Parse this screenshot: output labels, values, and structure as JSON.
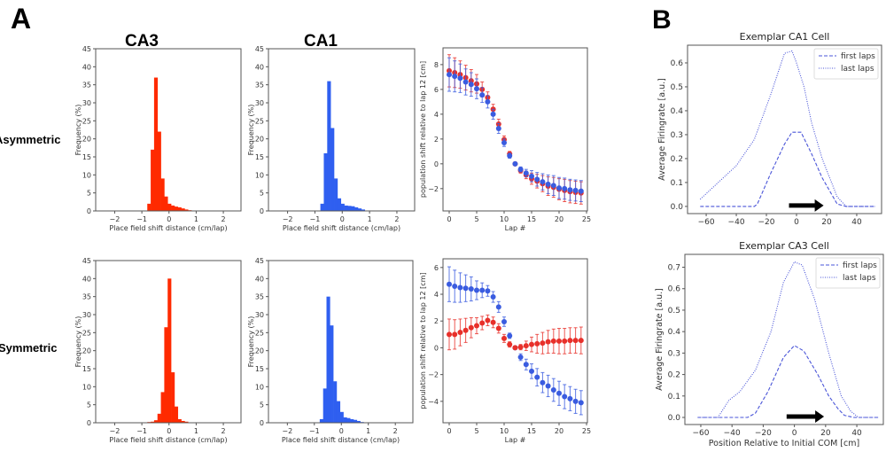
{
  "figure": {
    "panel_labels": {
      "a": "A",
      "b": "B"
    },
    "column_titles": {
      "ca3": "CA3",
      "ca1": "CA1"
    },
    "row_labels": {
      "asymmetric": "Asymmetric",
      "symmetric": "Symmetric"
    }
  },
  "colors": {
    "red_hist": "#ff2a00",
    "blue_hist": "#2f5ff0",
    "red_point": "#e8302a",
    "blue_point": "#3a5ce0",
    "line_blue": "#4a55d8",
    "axis": "#555555"
  },
  "chart_data": [
    {
      "id": "hist-ca3-asym",
      "type": "bar",
      "xlabel": "Place field shift distance (cm/lap)",
      "ylabel": "Frequency (%)",
      "xlim": [
        -2.7,
        2.65
      ],
      "ylim": [
        0,
        45
      ],
      "xticks": [
        -2,
        -1,
        0,
        1,
        2
      ],
      "xtick_labels": [
        "−2",
        "−1",
        "0",
        "1",
        "2"
      ],
      "yticks": [
        0,
        5,
        10,
        15,
        20,
        25,
        30,
        35,
        40,
        45
      ],
      "ytick_labels": [
        "0",
        "5",
        "10",
        "15",
        "20",
        "25",
        "30",
        "35",
        "40",
        "45"
      ],
      "color": "#ff2a00",
      "bin_start": -0.8,
      "bin_width": 0.125,
      "values": [
        2,
        17,
        37,
        22,
        9,
        4,
        2,
        1.5,
        1.2,
        1.0,
        0.7,
        0.4,
        0.2,
        0.1
      ]
    },
    {
      "id": "hist-ca1-asym",
      "type": "bar",
      "xlabel": "Place field shift distance (cm/lap)",
      "ylabel": "Frequency (%)",
      "xlim": [
        -2.7,
        2.65
      ],
      "ylim": [
        0,
        45
      ],
      "xticks": [
        -2,
        -1,
        0,
        1,
        2
      ],
      "xtick_labels": [
        "−2",
        "−1",
        "0",
        "1",
        "2"
      ],
      "yticks": [
        0,
        5,
        10,
        15,
        20,
        25,
        30,
        35,
        40,
        45
      ],
      "ytick_labels": [
        "0",
        "5",
        "10",
        "15",
        "20",
        "25",
        "30",
        "35",
        "40",
        "45"
      ],
      "color": "#2f5ff0",
      "bin_start": -0.8,
      "bin_width": 0.125,
      "values": [
        2,
        16,
        36,
        23,
        9,
        3.5,
        2,
        1.5,
        1.4,
        1.3,
        1.0,
        0.7,
        0.4,
        0.1
      ]
    },
    {
      "id": "shift-asym",
      "type": "scatter",
      "xlabel": "Lap #",
      "ylabel": "population shift relative to lap 12 [cm]",
      "xlim": [
        -1.13,
        25.16
      ],
      "ylim": [
        -3.8,
        9.35
      ],
      "xticks": [
        0,
        5,
        10,
        15,
        20,
        25
      ],
      "xtick_labels": [
        "0",
        "5",
        "10",
        "15",
        "20",
        "25"
      ],
      "yticks": [
        -2,
        0,
        2,
        4,
        6,
        8
      ],
      "ytick_labels": [
        "−2",
        "0",
        "2",
        "4",
        "6",
        "8"
      ],
      "x": [
        0,
        1,
        2,
        3,
        4,
        5,
        6,
        7,
        8,
        9,
        10,
        11,
        12,
        13,
        14,
        15,
        16,
        17,
        18,
        19,
        20,
        21,
        22,
        23,
        24
      ],
      "series": [
        {
          "color": "#e8302a",
          "y": [
            7.5,
            7.35,
            7.2,
            6.95,
            6.7,
            6.45,
            6.0,
            5.35,
            4.4,
            3.2,
            1.95,
            0.8,
            0,
            -0.55,
            -0.9,
            -1.2,
            -1.4,
            -1.6,
            -1.8,
            -1.9,
            -2.05,
            -2.15,
            -2.25,
            -2.3,
            -2.35
          ],
          "err": [
            1.3,
            1.2,
            1.1,
            1.0,
            0.9,
            0.75,
            0.6,
            0.45,
            0.4,
            0.4,
            0.3,
            0.2,
            0,
            0.2,
            0.3,
            0.45,
            0.55,
            0.65,
            0.75,
            0.8,
            0.85,
            0.9,
            0.9,
            0.9,
            0.9
          ]
        },
        {
          "color": "#3a5ce0",
          "y": [
            7.2,
            7.05,
            6.9,
            6.6,
            6.4,
            6.05,
            5.55,
            5.0,
            4.0,
            2.85,
            1.7,
            0.65,
            0,
            -0.45,
            -0.75,
            -1.0,
            -1.25,
            -1.45,
            -1.65,
            -1.75,
            -1.95,
            -2.0,
            -2.1,
            -2.15,
            -2.2
          ],
          "err": [
            1.35,
            1.25,
            1.15,
            1.05,
            0.95,
            0.8,
            0.6,
            0.5,
            0.4,
            0.4,
            0.3,
            0.2,
            0,
            0.2,
            0.3,
            0.45,
            0.55,
            0.65,
            0.75,
            0.8,
            0.85,
            0.85,
            0.85,
            0.85,
            0.85
          ]
        }
      ]
    },
    {
      "id": "hist-ca3-sym",
      "type": "bar",
      "xlabel": "Place field shift distance (cm/lap)",
      "ylabel": "Frequency (%)",
      "xlim": [
        -2.7,
        2.65
      ],
      "ylim": [
        0,
        45
      ],
      "xticks": [
        -2,
        -1,
        0,
        1,
        2
      ],
      "xtick_labels": [
        "−2",
        "−1",
        "0",
        "1",
        "2"
      ],
      "yticks": [
        0,
        5,
        10,
        15,
        20,
        25,
        30,
        35,
        40,
        45
      ],
      "ytick_labels": [
        "0",
        "5",
        "10",
        "15",
        "20",
        "25",
        "30",
        "35",
        "40",
        "45"
      ],
      "color": "#ff2a00",
      "bin_start": -1.05,
      "bin_width": 0.125,
      "values": [
        0.05,
        0.1,
        0.2,
        0.3,
        0.7,
        2.5,
        8.5,
        26.5,
        40,
        14,
        4.5,
        1,
        0.5,
        0.3,
        0.1
      ]
    },
    {
      "id": "hist-ca1-sym",
      "type": "bar",
      "xlabel": "Place field shift distance (cm/lap)",
      "ylabel": "Frequency (%)",
      "xlim": [
        -2.7,
        2.65
      ],
      "ylim": [
        0,
        45
      ],
      "xticks": [
        -2,
        -1,
        0,
        1,
        2
      ],
      "xtick_labels": [
        "−2",
        "−1",
        "0",
        "1",
        "2"
      ],
      "yticks": [
        0,
        5,
        10,
        15,
        20,
        25,
        30,
        35,
        40,
        45
      ],
      "ytick_labels": [
        "0",
        "5",
        "10",
        "15",
        "20",
        "25",
        "30",
        "35",
        "40",
        "45"
      ],
      "color": "#2f5ff0",
      "bin_start": -0.8,
      "bin_width": 0.125,
      "values": [
        1,
        9.5,
        35,
        27,
        11.5,
        6,
        3,
        1.5,
        1.3,
        1.0,
        0.8,
        0.5,
        0.2
      ]
    },
    {
      "id": "shift-sym",
      "type": "scatter",
      "xlabel": "Lap #",
      "ylabel": "population shift relative to lap 12 [cm]",
      "xlim": [
        -1.13,
        25.16
      ],
      "ylim": [
        -5.6,
        6.65
      ],
      "xticks": [
        0,
        5,
        10,
        15,
        20,
        25
      ],
      "xtick_labels": [
        "0",
        "5",
        "10",
        "15",
        "20",
        "25"
      ],
      "yticks": [
        -4,
        -2,
        0,
        2,
        4,
        6
      ],
      "ytick_labels": [
        "−4",
        "−2",
        "0",
        "2",
        "4",
        "6"
      ],
      "x": [
        0,
        1,
        2,
        3,
        4,
        5,
        6,
        7,
        8,
        9,
        10,
        11,
        12,
        13,
        14,
        15,
        16,
        17,
        18,
        19,
        20,
        21,
        22,
        23,
        24
      ],
      "series": [
        {
          "color": "#3a5ce0",
          "y": [
            4.75,
            4.6,
            4.5,
            4.45,
            4.4,
            4.3,
            4.3,
            4.25,
            3.8,
            3.05,
            1.95,
            0.9,
            0,
            -0.7,
            -1.25,
            -1.75,
            -2.2,
            -2.6,
            -2.85,
            -3.15,
            -3.4,
            -3.65,
            -3.8,
            -4.0,
            -4.1
          ],
          "err": [
            1.3,
            1.2,
            1.1,
            1.0,
            0.9,
            0.7,
            0.55,
            0.4,
            0.4,
            0.4,
            0.35,
            0.2,
            0,
            0.25,
            0.4,
            0.55,
            0.65,
            0.75,
            0.8,
            0.85,
            0.9,
            0.9,
            0.9,
            0.9,
            0.9
          ]
        },
        {
          "color": "#e8302a",
          "y": [
            1.0,
            1.0,
            1.15,
            1.3,
            1.5,
            1.65,
            1.85,
            2.05,
            1.9,
            1.45,
            0.7,
            0.25,
            0,
            0.05,
            0.15,
            0.25,
            0.3,
            0.35,
            0.45,
            0.5,
            0.5,
            0.5,
            0.55,
            0.55,
            0.55
          ],
          "err": [
            1.15,
            1.1,
            1.0,
            0.9,
            0.75,
            0.6,
            0.5,
            0.4,
            0.4,
            0.35,
            0.3,
            0.2,
            0,
            0.2,
            0.35,
            0.55,
            0.7,
            0.8,
            0.85,
            0.9,
            0.95,
            0.95,
            0.95,
            0.95,
            1.0
          ]
        }
      ]
    },
    {
      "id": "exemplar-ca1",
      "type": "line",
      "title": "Exemplar CA1 Cell",
      "xlabel": "",
      "ylabel": "Average Firingrate [a.u.]",
      "xlim": [
        -72.4,
        56.5
      ],
      "ylim": [
        -0.03,
        0.674
      ],
      "xticks": [
        -60,
        -40,
        -20,
        0,
        20,
        40
      ],
      "xtick_labels": [
        "−60",
        "−40",
        "−20",
        "0",
        "20",
        "40"
      ],
      "yticks": [
        0,
        0.1,
        0.2,
        0.3,
        0.4,
        0.5,
        0.6
      ],
      "ytick_labels": [
        "0.0",
        "0.1",
        "0.2",
        "0.3",
        "0.4",
        "0.5",
        "0.6"
      ],
      "legend": "top-right",
      "arrow": {
        "from": -5,
        "to": 18,
        "y": 0.0
      },
      "series": [
        {
          "name": "first laps",
          "style": "dashed",
          "points": [
            [
              -64,
              0
            ],
            [
              -28,
              0
            ],
            [
              -26,
              0.01
            ],
            [
              -17,
              0.14
            ],
            [
              -8,
              0.26
            ],
            [
              -3,
              0.31
            ],
            [
              0,
              0.31
            ],
            [
              3,
              0.31
            ],
            [
              10,
              0.22
            ],
            [
              17,
              0.12
            ],
            [
              27,
              0.01
            ],
            [
              33,
              0
            ],
            [
              52,
              0
            ]
          ]
        },
        {
          "name": "last laps",
          "style": "dotted",
          "points": [
            [
              -64,
              0.03
            ],
            [
              -40,
              0.17
            ],
            [
              -28,
              0.28
            ],
            [
              -17,
              0.47
            ],
            [
              -8,
              0.64
            ],
            [
              -3,
              0.65
            ],
            [
              0,
              0.6
            ],
            [
              5,
              0.5
            ],
            [
              10,
              0.35
            ],
            [
              17,
              0.2
            ],
            [
              27,
              0.04
            ],
            [
              33,
              0
            ],
            [
              52,
              0
            ]
          ]
        }
      ]
    },
    {
      "id": "exemplar-ca3",
      "type": "line",
      "title": "Exemplar CA3 Cell",
      "xlabel": "Position Relative to Initial COM [cm]",
      "ylabel": "Average Firingrate [a.u.]",
      "xlim": [
        -70.2,
        57
      ],
      "ylim": [
        -0.033,
        0.76
      ],
      "xticks": [
        -60,
        -40,
        -20,
        0,
        20,
        40
      ],
      "xtick_labels": [
        "−60",
        "−40",
        "−20",
        "0",
        "20",
        "40"
      ],
      "yticks": [
        0,
        0.1,
        0.2,
        0.3,
        0.4,
        0.5,
        0.6,
        0.7
      ],
      "ytick_labels": [
        "0.0",
        "0.1",
        "0.2",
        "0.3",
        "0.4",
        "0.5",
        "0.6",
        "0.7"
      ],
      "legend": "top-right",
      "arrow": {
        "from": -5,
        "to": 19,
        "y": 0.0
      },
      "series": [
        {
          "name": "first laps",
          "style": "dashed",
          "points": [
            [
              -62,
              0
            ],
            [
              -30,
              0
            ],
            [
              -25,
              0.02
            ],
            [
              -17,
              0.12
            ],
            [
              -7,
              0.28
            ],
            [
              0,
              0.335
            ],
            [
              6,
              0.31
            ],
            [
              15,
              0.2
            ],
            [
              22,
              0.1
            ],
            [
              28,
              0.04
            ],
            [
              32,
              0.01
            ],
            [
              38,
              0
            ],
            [
              54,
              0
            ]
          ]
        },
        {
          "name": "last laps",
          "style": "dotted",
          "points": [
            [
              -62,
              0
            ],
            [
              -49,
              0
            ],
            [
              -42,
              0.08
            ],
            [
              -35,
              0.12
            ],
            [
              -25,
              0.22
            ],
            [
              -15,
              0.4
            ],
            [
              -7,
              0.63
            ],
            [
              0,
              0.725
            ],
            [
              5,
              0.71
            ],
            [
              13,
              0.55
            ],
            [
              22,
              0.3
            ],
            [
              30,
              0.1
            ],
            [
              36,
              0.03
            ],
            [
              41,
              0
            ],
            [
              54,
              0
            ]
          ]
        }
      ]
    }
  ]
}
